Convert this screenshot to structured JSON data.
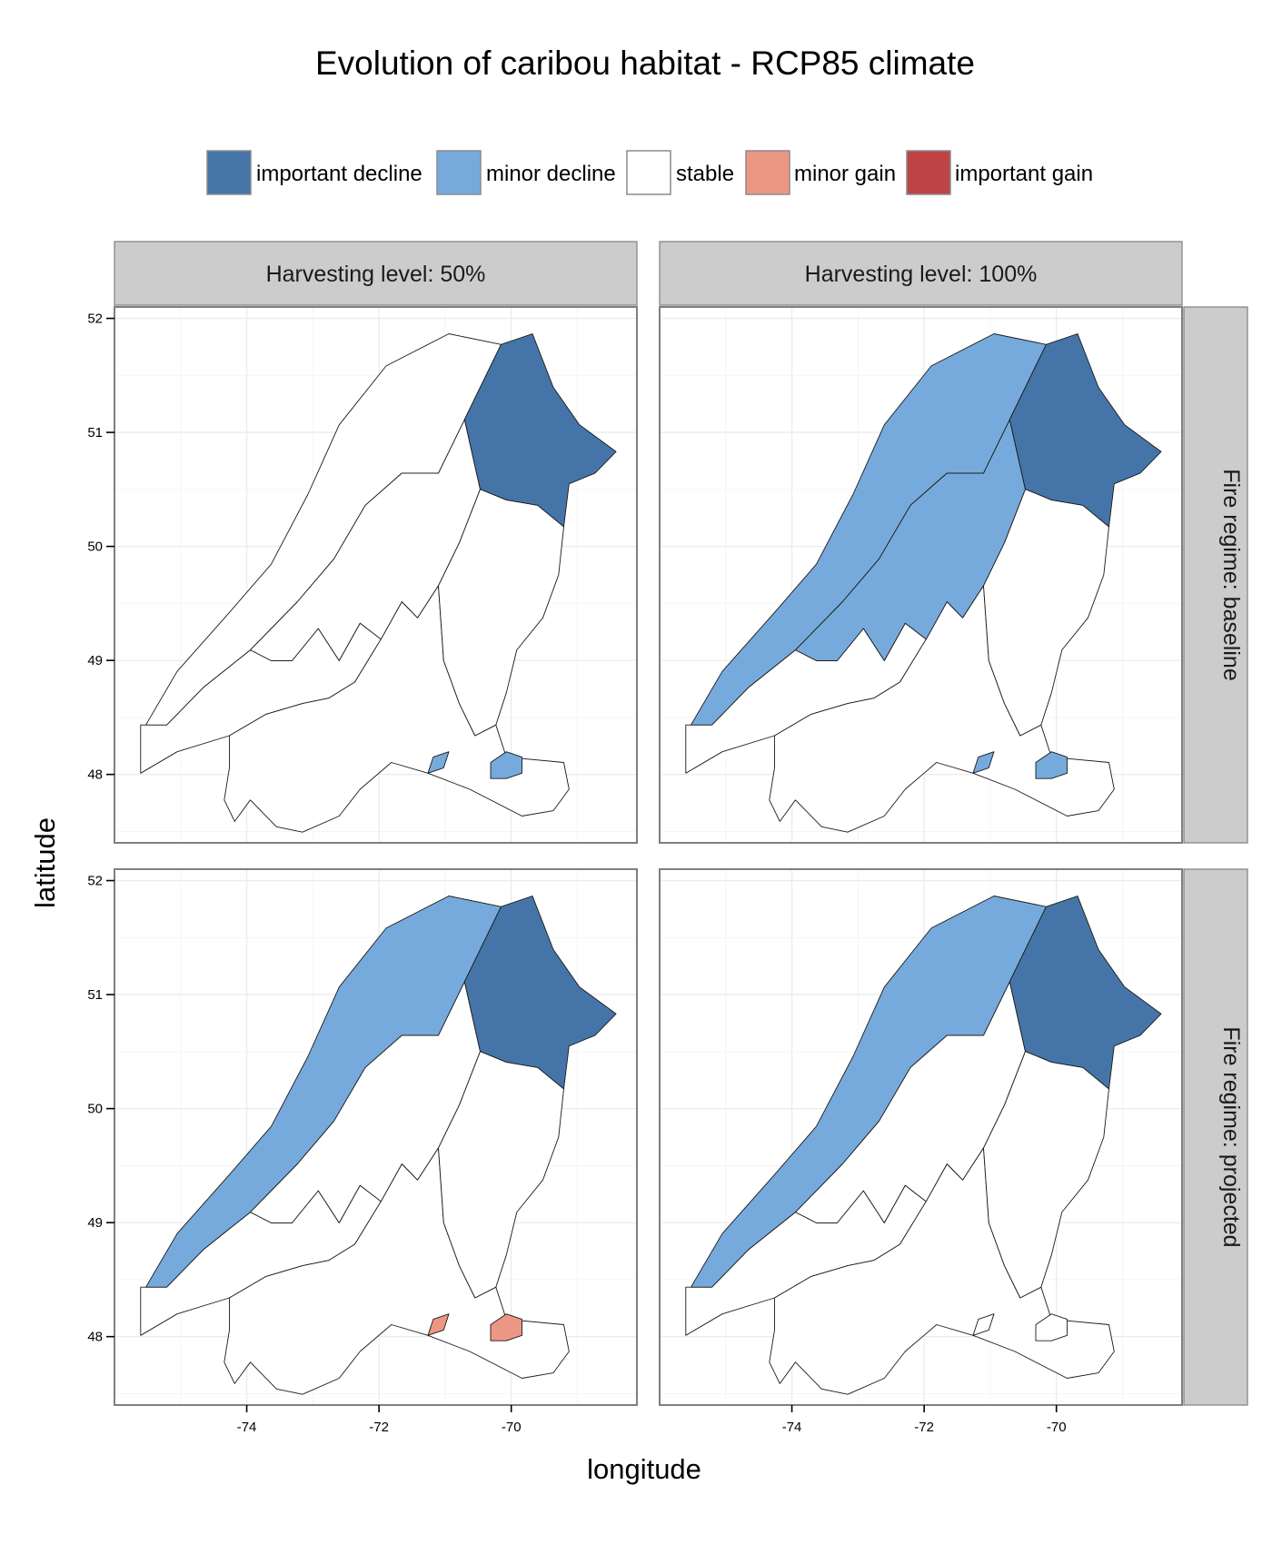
{
  "chart_data": {
    "type": "choropleth-facets",
    "title": "Evolution of caribou habitat - RCP85 climate",
    "xlabel": "longitude",
    "ylabel": "latitude",
    "xlim": [
      -76.0,
      -68.1
    ],
    "ylim": [
      47.4,
      52.1
    ],
    "x_ticks": [
      -74,
      -72,
      -70
    ],
    "y_ticks": [
      48,
      49,
      50,
      51,
      52
    ],
    "x_tick_labels": [
      "-74",
      "-72",
      "-70"
    ],
    "y_tick_labels": [
      "48",
      "49",
      "50",
      "51",
      "52"
    ],
    "grid": true,
    "legend_position": "top",
    "legend": [
      {
        "key": "important_decline",
        "label": "important decline",
        "color": "#4575a8"
      },
      {
        "key": "minor_decline",
        "label": "minor decline",
        "color": "#77aadc"
      },
      {
        "key": "stable",
        "label": "stable",
        "color": "#ffffff"
      },
      {
        "key": "minor_gain",
        "label": "minor gain",
        "color": "#ec9784"
      },
      {
        "key": "important_gain",
        "label": "important gain",
        "color": "#bd4345"
      }
    ],
    "columns": [
      "Harvesting level: 50%",
      "Harvesting level: 100%"
    ],
    "rows": [
      "Fire regime: baseline",
      "Fire regime: projected"
    ],
    "panels": [
      {
        "column": "Harvesting level: 50%",
        "row": "Fire regime: baseline",
        "regions": {
          "north": "stable",
          "northeast": "important_decline",
          "central": "stable",
          "east": "stable",
          "south": "stable",
          "southwest": "stable",
          "southeast_patch": "minor_decline",
          "southwest_edge": "minor_decline"
        }
      },
      {
        "column": "Harvesting level: 100%",
        "row": "Fire regime: baseline",
        "regions": {
          "north": "minor_decline",
          "northeast": "important_decline",
          "central": "minor_decline",
          "east": "stable",
          "south": "stable",
          "southwest": "stable",
          "southeast_patch": "minor_decline",
          "southwest_edge": "minor_decline"
        }
      },
      {
        "column": "Harvesting level: 50%",
        "row": "Fire regime: projected",
        "regions": {
          "north": "minor_decline",
          "northeast": "important_decline",
          "central": "stable",
          "east": "stable",
          "south": "stable",
          "southwest": "stable",
          "southeast_patch": "minor_gain",
          "southwest_edge": "minor_gain"
        }
      },
      {
        "column": "Harvesting level: 100%",
        "row": "Fire regime: projected",
        "regions": {
          "north": "minor_decline",
          "northeast": "important_decline",
          "central": "stable",
          "east": "stable",
          "south": "stable",
          "southwest": "stable",
          "southeast_patch": "stable",
          "southwest_edge": "stable"
        }
      }
    ]
  }
}
